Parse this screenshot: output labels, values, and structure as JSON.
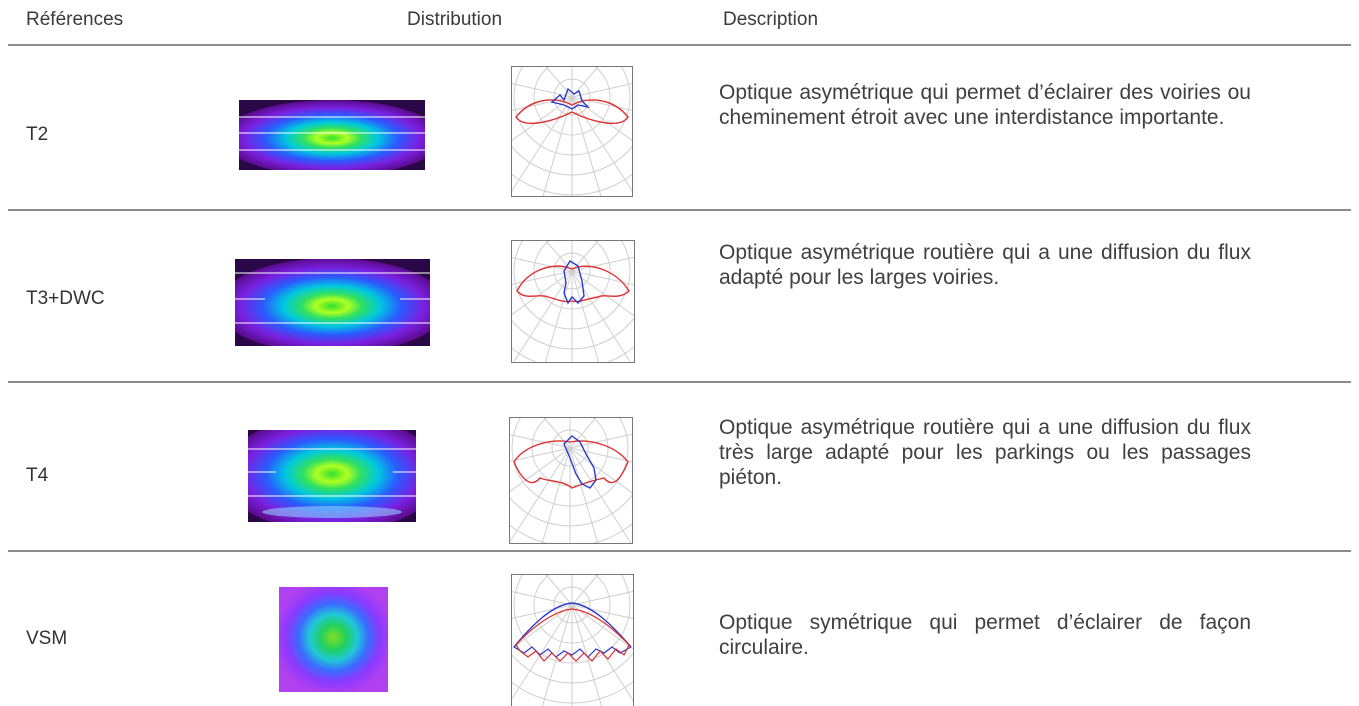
{
  "header": {
    "references": "Références",
    "distribution": "Distribution",
    "description": "Description"
  },
  "rows": [
    {
      "reference": "T2",
      "description": "Optique asymétrique qui permet d’éclairer des voiries ou cheminement étroit avec une interdistance importante."
    },
    {
      "reference": "T3+DWC",
      "description": "Optique asymétrique routière qui a une diffusion du flux adapté pour les larges voiries."
    },
    {
      "reference": "T4",
      "description": "Optique asymétrique routière qui a une diffusion du flux très large adapté pour les parkings ou les passages piéton."
    },
    {
      "reference": "VSM",
      "description": "Optique symétrique qui permet d’éclairer de façon circulaire."
    }
  ],
  "colors": {
    "curve_red": "#e03030",
    "curve_blue": "#2a3ad0",
    "grid": "#cfcfcf",
    "separator": "#8c8c8c"
  }
}
